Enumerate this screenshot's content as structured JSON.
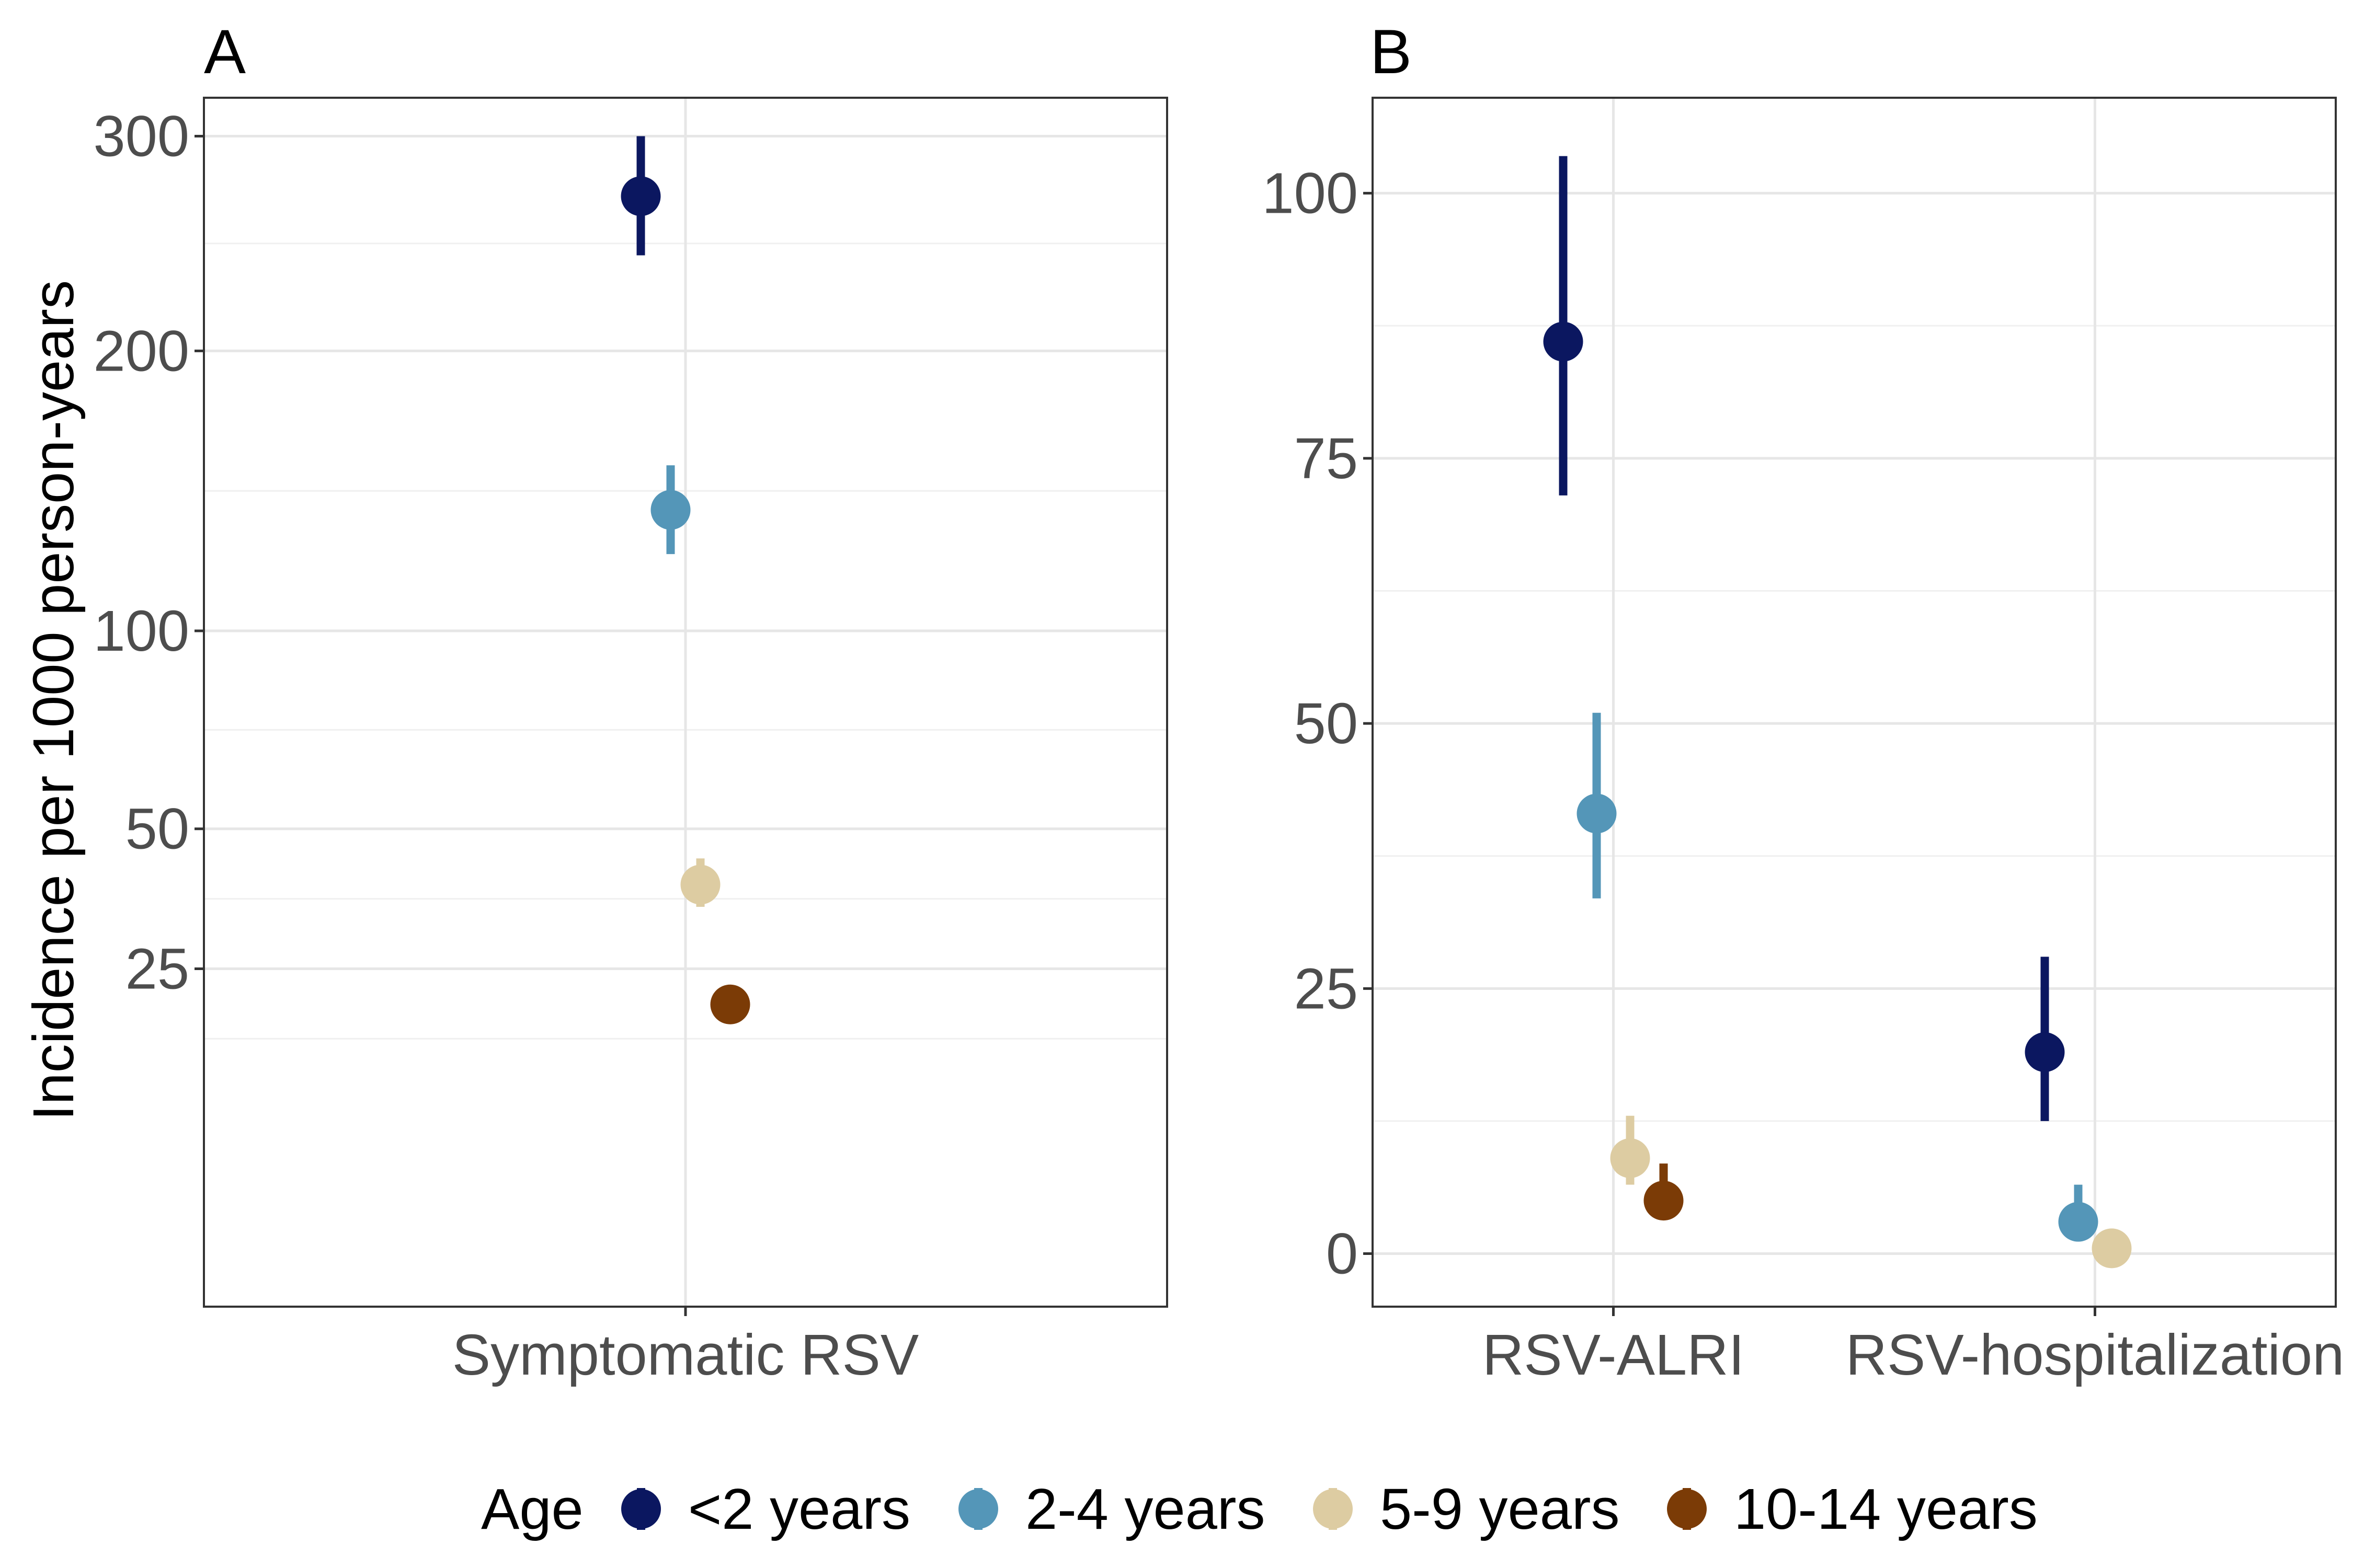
{
  "y_axis_title": "Incidence per 1000 person-years",
  "legend": {
    "title": "Age",
    "entries": [
      {
        "label": "<2 years",
        "color": "#0b1760"
      },
      {
        "label": "2-4 years",
        "color": "#5496b8"
      },
      {
        "label": "5-9 years",
        "color": "#ddcca2"
      },
      {
        "label": "10-14 years",
        "color": "#7b3b06"
      }
    ]
  },
  "chart_data": [
    {
      "type": "scatter",
      "panel": "A",
      "categories": [
        "Symptomatic RSV"
      ],
      "scale": "sqrt",
      "ylim": [
        0,
        320
      ],
      "yticks": [
        25,
        50,
        100,
        200,
        300
      ],
      "ytick_labels": [
        "25",
        "50",
        "100",
        "200",
        "300"
      ],
      "grid": true,
      "series": [
        {
          "name": "<2 years",
          "points": [
            {
              "category": "Symptomatic RSV",
              "y": 270,
              "lower": 242,
              "upper": 300
            }
          ]
        },
        {
          "name": "2-4 years",
          "points": [
            {
              "category": "Symptomatic RSV",
              "y": 139,
              "lower": 124,
              "upper": 155
            }
          ]
        },
        {
          "name": "5-9 years",
          "points": [
            {
              "category": "Symptomatic RSV",
              "y": 39,
              "lower": 35,
              "upper": 44
            }
          ]
        },
        {
          "name": "10-14 years",
          "points": [
            {
              "category": "Symptomatic RSV",
              "y": 20,
              "lower": 18,
              "upper": 22
            }
          ]
        }
      ]
    },
    {
      "type": "scatter",
      "panel": "B",
      "categories": [
        "RSV-ALRI",
        "RSV-hospitalization"
      ],
      "scale": "linear",
      "ylim": [
        -5,
        109
      ],
      "yticks": [
        0,
        25,
        50,
        75,
        100
      ],
      "ytick_labels": [
        "0",
        "25",
        "50",
        "75",
        "100"
      ],
      "grid": true,
      "series": [
        {
          "name": "<2 years",
          "points": [
            {
              "category": "RSV-ALRI",
              "y": 86,
              "lower": 71.5,
              "upper": 103.5
            },
            {
              "category": "RSV-hospitalization",
              "y": 19,
              "lower": 12.5,
              "upper": 28
            }
          ]
        },
        {
          "name": "2-4 years",
          "points": [
            {
              "category": "RSV-ALRI",
              "y": 41.5,
              "lower": 33.5,
              "upper": 51
            },
            {
              "category": "RSV-hospitalization",
              "y": 3,
              "lower": 1.5,
              "upper": 6.5
            }
          ]
        },
        {
          "name": "5-9 years",
          "points": [
            {
              "category": "RSV-ALRI",
              "y": 9,
              "lower": 6.5,
              "upper": 13
            },
            {
              "category": "RSV-hospitalization",
              "y": 0.5,
              "lower": 0.1,
              "upper": 1.5
            }
          ]
        },
        {
          "name": "10-14 years",
          "points": [
            {
              "category": "RSV-ALRI",
              "y": 5,
              "lower": 3.5,
              "upper": 8.5
            }
          ]
        }
      ]
    }
  ]
}
